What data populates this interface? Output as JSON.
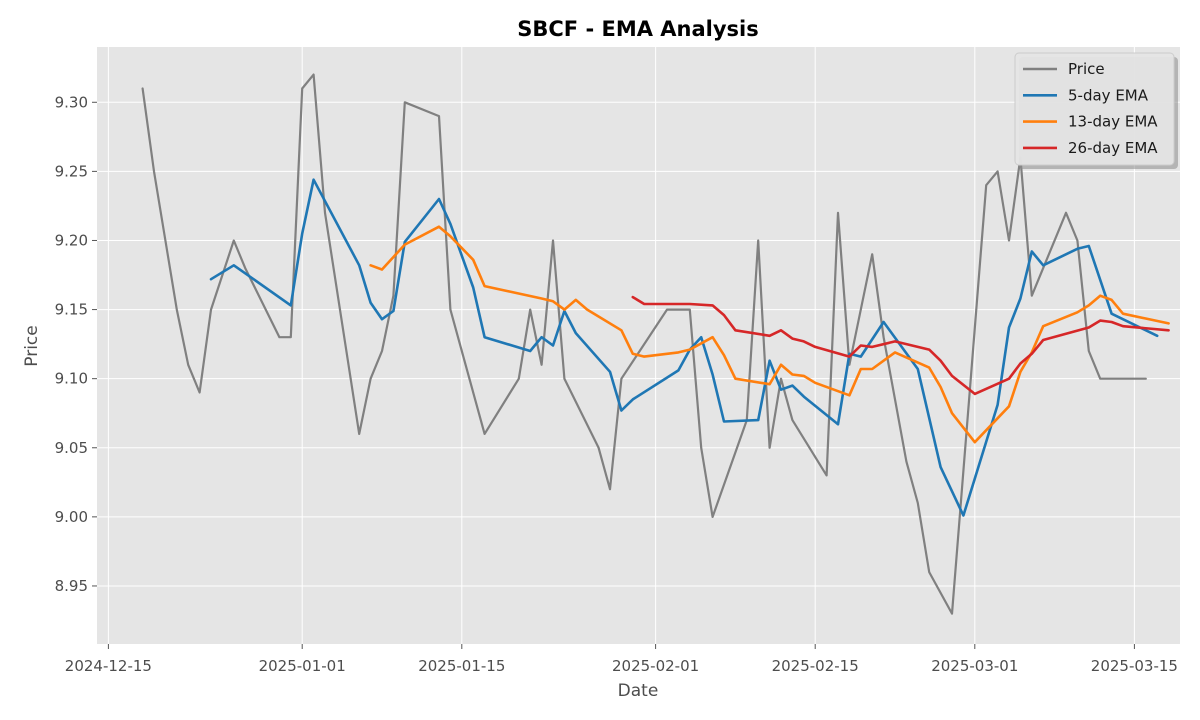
{
  "chart_data": {
    "type": "line",
    "title": "SBCF - EMA Analysis",
    "xlabel": "Date",
    "ylabel": "Price",
    "x_ticks": [
      "2024-12-15",
      "2025-01-01",
      "2025-01-15",
      "2025-02-01",
      "2025-02-15",
      "2025-03-01",
      "2025-03-15"
    ],
    "y_ticks": [
      "8.95",
      "9.00",
      "9.05",
      "9.10",
      "9.15",
      "9.20",
      "9.25",
      "9.30"
    ],
    "xlim": [
      "2024-12-14",
      "2025-03-19"
    ],
    "ylim": [
      8.908,
      9.34
    ],
    "grid": true,
    "legend_position": "top-right",
    "series": [
      {
        "name": "Price",
        "color": "#808080",
        "points": [
          [
            "2024-12-18",
            9.31
          ],
          [
            "2024-12-19",
            9.25
          ],
          [
            "2024-12-20",
            9.2
          ],
          [
            "2024-12-21",
            9.15
          ],
          [
            "2024-12-22",
            9.11
          ],
          [
            "2024-12-23",
            9.09
          ],
          [
            "2024-12-24",
            9.15
          ],
          [
            "2024-12-26",
            9.2
          ],
          [
            "2024-12-27",
            9.18
          ],
          [
            "2024-12-30",
            9.13
          ],
          [
            "2024-12-31",
            9.13
          ],
          [
            "2025-01-01",
            9.31
          ],
          [
            "2025-01-02",
            9.32
          ],
          [
            "2025-01-03",
            9.22
          ],
          [
            "2025-01-06",
            9.06
          ],
          [
            "2025-01-07",
            9.1
          ],
          [
            "2025-01-08",
            9.12
          ],
          [
            "2025-01-09",
            9.16
          ],
          [
            "2025-01-10",
            9.3
          ],
          [
            "2025-01-13",
            9.29
          ],
          [
            "2025-01-14",
            9.15
          ],
          [
            "2025-01-17",
            9.06
          ],
          [
            "2025-01-20",
            9.1
          ],
          [
            "2025-01-21",
            9.15
          ],
          [
            "2025-01-22",
            9.11
          ],
          [
            "2025-01-23",
            9.2
          ],
          [
            "2025-01-24",
            9.1
          ],
          [
            "2025-01-27",
            9.05
          ],
          [
            "2025-01-28",
            9.02
          ],
          [
            "2025-01-29",
            9.1
          ],
          [
            "2025-02-02",
            9.15
          ],
          [
            "2025-02-03",
            9.15
          ],
          [
            "2025-02-04",
            9.15
          ],
          [
            "2025-02-05",
            9.05
          ],
          [
            "2025-02-06",
            9.0
          ],
          [
            "2025-02-09",
            9.07
          ],
          [
            "2025-02-10",
            9.2
          ],
          [
            "2025-02-11",
            9.05
          ],
          [
            "2025-02-12",
            9.1
          ],
          [
            "2025-02-13",
            9.07
          ],
          [
            "2025-02-16",
            9.03
          ],
          [
            "2025-02-17",
            9.22
          ],
          [
            "2025-02-18",
            9.11
          ],
          [
            "2025-02-20",
            9.19
          ],
          [
            "2025-02-21",
            9.13
          ],
          [
            "2025-02-23",
            9.04
          ],
          [
            "2025-02-24",
            9.01
          ],
          [
            "2025-02-25",
            8.96
          ],
          [
            "2025-02-27",
            8.93
          ],
          [
            "2025-03-02",
            9.24
          ],
          [
            "2025-03-03",
            9.25
          ],
          [
            "2025-03-04",
            9.2
          ],
          [
            "2025-03-05",
            9.26
          ],
          [
            "2025-03-06",
            9.16
          ],
          [
            "2025-03-09",
            9.22
          ],
          [
            "2025-03-10",
            9.2
          ],
          [
            "2025-03-11",
            9.12
          ],
          [
            "2025-03-12",
            9.1
          ],
          [
            "2025-03-16",
            9.1
          ]
        ]
      },
      {
        "name": "5-day EMA",
        "color": "#1f77b4",
        "points": [
          [
            "2024-12-24",
            9.172
          ],
          [
            "2024-12-26",
            9.182
          ],
          [
            "2024-12-31",
            9.153
          ],
          [
            "2025-01-01",
            9.205
          ],
          [
            "2025-01-02",
            9.244
          ],
          [
            "2025-01-06",
            9.182
          ],
          [
            "2025-01-07",
            9.155
          ],
          [
            "2025-01-08",
            9.143
          ],
          [
            "2025-01-09",
            9.149
          ],
          [
            "2025-01-10",
            9.199
          ],
          [
            "2025-01-13",
            9.23
          ],
          [
            "2025-01-14",
            9.212
          ],
          [
            "2025-01-16",
            9.166
          ],
          [
            "2025-01-17",
            9.13
          ],
          [
            "2025-01-21",
            9.12
          ],
          [
            "2025-01-22",
            9.13
          ],
          [
            "2025-01-23",
            9.124
          ],
          [
            "2025-01-24",
            9.149
          ],
          [
            "2025-01-25",
            9.133
          ],
          [
            "2025-01-28",
            9.105
          ],
          [
            "2025-01-29",
            9.077
          ],
          [
            "2025-01-30",
            9.085
          ],
          [
            "2025-02-03",
            9.106
          ],
          [
            "2025-02-04",
            9.121
          ],
          [
            "2025-02-05",
            9.13
          ],
          [
            "2025-02-06",
            9.103
          ],
          [
            "2025-02-07",
            9.069
          ],
          [
            "2025-02-10",
            9.07
          ],
          [
            "2025-02-11",
            9.113
          ],
          [
            "2025-02-12",
            9.092
          ],
          [
            "2025-02-13",
            9.095
          ],
          [
            "2025-02-14",
            9.087
          ],
          [
            "2025-02-17",
            9.067
          ],
          [
            "2025-02-18",
            9.118
          ],
          [
            "2025-02-19",
            9.116
          ],
          [
            "2025-02-21",
            9.141
          ],
          [
            "2025-02-24",
            9.107
          ],
          [
            "2025-02-26",
            9.036
          ],
          [
            "2025-02-28",
            9.001
          ],
          [
            "2025-03-03",
            9.081
          ],
          [
            "2025-03-04",
            9.137
          ],
          [
            "2025-03-05",
            9.158
          ],
          [
            "2025-03-06",
            9.192
          ],
          [
            "2025-03-07",
            9.182
          ],
          [
            "2025-03-10",
            9.194
          ],
          [
            "2025-03-11",
            9.196
          ],
          [
            "2025-03-13",
            9.147
          ],
          [
            "2025-03-17",
            9.131
          ]
        ]
      },
      {
        "name": "13-day EMA",
        "color": "#ff7f0e",
        "points": [
          [
            "2025-01-07",
            9.182
          ],
          [
            "2025-01-08",
            9.179
          ],
          [
            "2025-01-10",
            9.197
          ],
          [
            "2025-01-13",
            9.21
          ],
          [
            "2025-01-14",
            9.203
          ],
          [
            "2025-01-16",
            9.186
          ],
          [
            "2025-01-17",
            9.167
          ],
          [
            "2025-01-22",
            9.158
          ],
          [
            "2025-01-23",
            9.156
          ],
          [
            "2025-01-24",
            9.15
          ],
          [
            "2025-01-25",
            9.157
          ],
          [
            "2025-01-26",
            9.15
          ],
          [
            "2025-01-29",
            9.135
          ],
          [
            "2025-01-30",
            9.118
          ],
          [
            "2025-01-31",
            9.116
          ],
          [
            "2025-02-03",
            9.119
          ],
          [
            "2025-02-04",
            9.121
          ],
          [
            "2025-02-06",
            9.13
          ],
          [
            "2025-02-07",
            9.117
          ],
          [
            "2025-02-08",
            9.1
          ],
          [
            "2025-02-11",
            9.096
          ],
          [
            "2025-02-12",
            9.11
          ],
          [
            "2025-02-13",
            9.103
          ],
          [
            "2025-02-14",
            9.102
          ],
          [
            "2025-02-15",
            9.097
          ],
          [
            "2025-02-18",
            9.088
          ],
          [
            "2025-02-19",
            9.107
          ],
          [
            "2025-02-20",
            9.107
          ],
          [
            "2025-02-22",
            9.119
          ],
          [
            "2025-02-25",
            9.108
          ],
          [
            "2025-02-26",
            9.094
          ],
          [
            "2025-02-27",
            9.075
          ],
          [
            "2025-03-01",
            9.054
          ],
          [
            "2025-03-04",
            9.08
          ],
          [
            "2025-03-05",
            9.105
          ],
          [
            "2025-03-06",
            9.119
          ],
          [
            "2025-03-07",
            9.138
          ],
          [
            "2025-03-10",
            9.148
          ],
          [
            "2025-03-11",
            9.153
          ],
          [
            "2025-03-12",
            9.16
          ],
          [
            "2025-03-13",
            9.157
          ],
          [
            "2025-03-14",
            9.147
          ],
          [
            "2025-03-18",
            9.14
          ]
        ]
      },
      {
        "name": "26-day EMA",
        "color": "#d62728",
        "points": [
          [
            "2025-01-30",
            9.159
          ],
          [
            "2025-01-31",
            9.154
          ],
          [
            "2025-02-04",
            9.154
          ],
          [
            "2025-02-06",
            9.153
          ],
          [
            "2025-02-07",
            9.146
          ],
          [
            "2025-02-08",
            9.135
          ],
          [
            "2025-02-11",
            9.131
          ],
          [
            "2025-02-12",
            9.135
          ],
          [
            "2025-02-13",
            9.129
          ],
          [
            "2025-02-14",
            9.127
          ],
          [
            "2025-02-15",
            9.123
          ],
          [
            "2025-02-18",
            9.116
          ],
          [
            "2025-02-19",
            9.124
          ],
          [
            "2025-02-20",
            9.123
          ],
          [
            "2025-02-22",
            9.127
          ],
          [
            "2025-02-25",
            9.121
          ],
          [
            "2025-02-26",
            9.113
          ],
          [
            "2025-02-27",
            9.102
          ],
          [
            "2025-03-01",
            9.089
          ],
          [
            "2025-03-04",
            9.1
          ],
          [
            "2025-03-05",
            9.111
          ],
          [
            "2025-03-06",
            9.118
          ],
          [
            "2025-03-07",
            9.128
          ],
          [
            "2025-03-11",
            9.137
          ],
          [
            "2025-03-12",
            9.142
          ],
          [
            "2025-03-13",
            9.141
          ],
          [
            "2025-03-14",
            9.138
          ],
          [
            "2025-03-18",
            9.135
          ]
        ]
      }
    ]
  }
}
